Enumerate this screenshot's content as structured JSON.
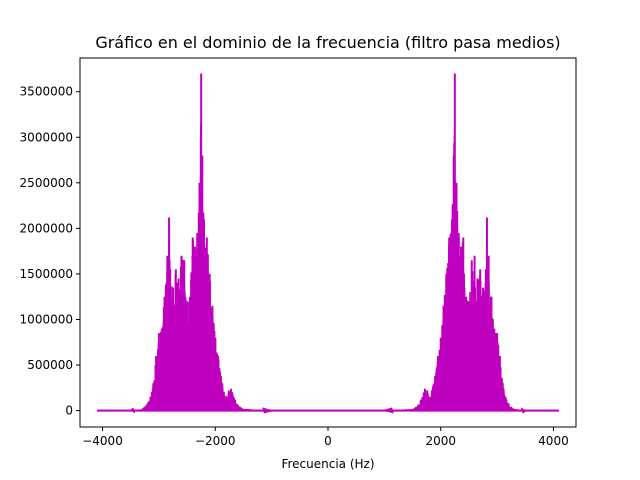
{
  "chart_data": {
    "type": "line",
    "title": "Gráfico en el dominio de la frecuencia (filtro pasa medios)",
    "xlabel": "Frecuencia (Hz)",
    "ylabel": "",
    "xlim": [
      -4400,
      4400
    ],
    "ylim": [
      -180000,
      3870000
    ],
    "xticks": [
      -4000,
      -2000,
      0,
      2000,
      4000
    ],
    "xtick_labels": [
      "−4000",
      "−2000",
      "0",
      "2000",
      "4000"
    ],
    "yticks": [
      0,
      500000,
      1000000,
      1500000,
      2000000,
      2500000,
      3000000,
      3500000
    ],
    "ytick_labels": [
      "0",
      "500000",
      "1000000",
      "1500000",
      "2000000",
      "2500000",
      "3000000",
      "3500000"
    ],
    "grid": false,
    "series": [
      {
        "color": "#bf00bf",
        "mirrored_about_zero": true,
        "x": [
          0,
          1000,
          1500,
          1600,
          1650,
          1700,
          1720,
          1760,
          1800,
          1900,
          1950,
          2000,
          2050,
          2100,
          2150,
          2200,
          2230,
          2250,
          2280,
          2320,
          2360,
          2400,
          2450,
          2500,
          2550,
          2600,
          2650,
          2700,
          2750,
          2800,
          2820,
          2850,
          2900,
          2950,
          3000,
          3050,
          3100,
          3150,
          3200,
          3300,
          3500,
          4096
        ],
        "y": [
          0,
          0,
          15000,
          60000,
          120000,
          200000,
          240000,
          220000,
          150000,
          380000,
          600000,
          800000,
          1150000,
          1500000,
          1900000,
          2100000,
          2800000,
          3700000,
          2500000,
          1950000,
          1800000,
          1900000,
          1250000,
          1200000,
          1650000,
          1700000,
          1450000,
          1550000,
          1350000,
          1550000,
          2120000,
          1700000,
          1250000,
          900000,
          850000,
          600000,
          300000,
          150000,
          80000,
          15000,
          0,
          0
        ]
      }
    ]
  }
}
